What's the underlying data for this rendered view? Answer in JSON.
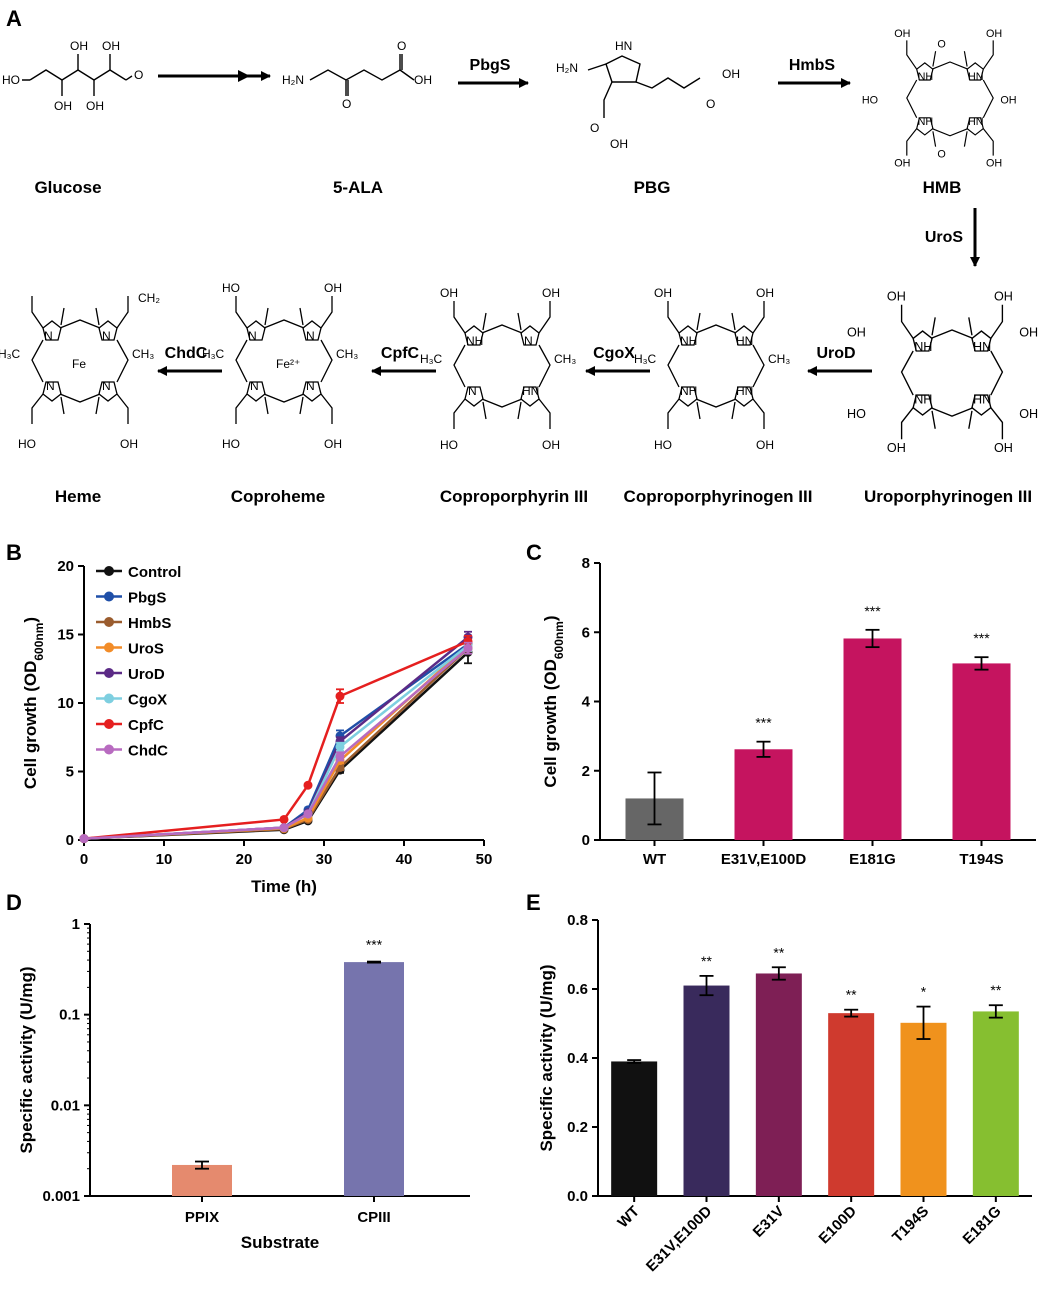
{
  "panels": {
    "A": "A",
    "B": "B",
    "C": "C",
    "D": "D",
    "E": "E"
  },
  "pathway": {
    "compounds": [
      "Glucose",
      "5-ALA",
      "PBG",
      "HMB",
      "Uroporphyrinogen III",
      "Coproporphyrinogen III",
      "Coproporphyrin III",
      "Coproheme",
      "Heme"
    ],
    "enzymes": [
      "PbgS",
      "HmbS",
      "UroS",
      "UroD",
      "CgoX",
      "CpfC",
      "ChdC"
    ],
    "atoms": {
      "oh": "OH",
      "ho": "HO",
      "o": "O",
      "h2n": "H₂N",
      "hn": "HN",
      "nh": "NH",
      "n": "N",
      "ch3": "CH₃",
      "h3c": "H₃C",
      "ch2": "CH₂",
      "fe": "Fe",
      "fe2": "Fe²⁺"
    }
  },
  "chart_data": [
    {
      "id": "B",
      "type": "line",
      "title": "",
      "xlabel": "Time (h)",
      "ylabel": "Cell growth (OD600nm)",
      "ylabel_main": "Cell growth (OD",
      "ylabel_sub": "600nm",
      "ylabel_end": ")",
      "xlim": [
        0,
        50
      ],
      "ylim": [
        0,
        20
      ],
      "xticks": [
        0,
        10,
        20,
        30,
        40,
        50
      ],
      "yticks": [
        0,
        5,
        10,
        15,
        20
      ],
      "x": [
        0,
        25,
        28,
        32,
        48
      ],
      "legend_position": "top-left",
      "series": [
        {
          "name": "Control",
          "color": "#111111",
          "values": [
            0.1,
            0.75,
            1.4,
            5.1,
            13.7
          ],
          "err": [
            0,
            0.05,
            0.1,
            0.2,
            0.8
          ]
        },
        {
          "name": "PbgS",
          "color": "#1f4fa8",
          "values": [
            0.1,
            0.9,
            2.2,
            7.6,
            14.3
          ],
          "err": [
            0,
            0.05,
            0.1,
            0.4,
            0.5
          ]
        },
        {
          "name": "HmbS",
          "color": "#9a5c2e",
          "values": [
            0.1,
            0.8,
            1.5,
            5.3,
            14.0
          ],
          "err": [
            0,
            0.05,
            0.1,
            0.2,
            0.4
          ]
        },
        {
          "name": "UroS",
          "color": "#f28c28",
          "values": [
            0.1,
            0.85,
            1.6,
            5.8,
            14.2
          ],
          "err": [
            0,
            0.05,
            0.1,
            0.2,
            0.4
          ]
        },
        {
          "name": "UroD",
          "color": "#5b2a86",
          "values": [
            0.1,
            0.9,
            2.0,
            7.2,
            14.8
          ],
          "err": [
            0,
            0.05,
            0.1,
            0.3,
            0.4
          ]
        },
        {
          "name": "CgoX",
          "color": "#7ecfe0",
          "values": [
            0.1,
            0.9,
            1.9,
            6.8,
            14.2
          ],
          "err": [
            0,
            0.05,
            0.1,
            0.3,
            0.4
          ]
        },
        {
          "name": "CpfC",
          "color": "#e51f1f",
          "values": [
            0.1,
            1.5,
            4.0,
            10.5,
            14.5
          ],
          "err": [
            0,
            0.05,
            0.1,
            0.5,
            0.4
          ]
        },
        {
          "name": "ChdC",
          "color": "#b86bc0",
          "values": [
            0.1,
            0.9,
            1.9,
            6.1,
            14.0
          ],
          "err": [
            0,
            0.05,
            0.1,
            0.3,
            0.4
          ]
        }
      ]
    },
    {
      "id": "C",
      "type": "bar",
      "title": "",
      "xlabel": "",
      "ylabel": "Cell growth (OD600nm)",
      "ylabel_main": "Cell growth (OD",
      "ylabel_sub": "600nm",
      "ylabel_end": ")",
      "ylim": [
        0,
        8
      ],
      "yticks": [
        0,
        2,
        4,
        6,
        8
      ],
      "categories": [
        "WT",
        "E31V,E100D",
        "E181G",
        "T194S"
      ],
      "values": [
        1.2,
        2.62,
        5.82,
        5.1
      ],
      "err": [
        0.75,
        0.22,
        0.25,
        0.18
      ],
      "colors": [
        "#666666",
        "#c5145f",
        "#c5145f",
        "#c5145f"
      ],
      "sig": [
        "",
        "***",
        "***",
        "***"
      ]
    },
    {
      "id": "D",
      "type": "bar",
      "title": "",
      "xlabel": "Substrate",
      "ylabel": "Specific activity (U/mg)",
      "yscale": "log",
      "ylim": [
        0.001,
        1
      ],
      "yticks": [
        0.001,
        0.01,
        0.1,
        1
      ],
      "ytick_labels": [
        "0.001",
        "0.01",
        "0.1",
        "1"
      ],
      "categories": [
        "PPIX",
        "CPIII"
      ],
      "values": [
        0.0022,
        0.38
      ],
      "err_low": [
        0.002,
        0.375
      ],
      "err_high": [
        0.0024,
        0.385
      ],
      "colors": [
        "#e58a6e",
        "#7674ad"
      ],
      "sig": [
        "",
        "***"
      ]
    },
    {
      "id": "E",
      "type": "bar",
      "title": "",
      "xlabel": "",
      "ylabel": "Specific activity (U/mg)",
      "ylim": [
        0,
        0.8
      ],
      "yticks": [
        0,
        0.2,
        0.4,
        0.6,
        0.8
      ],
      "ytick_labels": [
        "0.0",
        "0.2",
        "0.4",
        "0.6",
        "0.8"
      ],
      "categories": [
        "WT",
        "E31V,E100D",
        "E31V",
        "E100D",
        "T194S",
        "E181G"
      ],
      "values": [
        0.39,
        0.61,
        0.645,
        0.53,
        0.502,
        0.535
      ],
      "err": [
        0.004,
        0.028,
        0.018,
        0.01,
        0.047,
        0.018
      ],
      "colors": [
        "#111111",
        "#392a5c",
        "#7e1f55",
        "#cf3a2e",
        "#f0921d",
        "#86bf30"
      ],
      "sig": [
        "",
        "**",
        "**",
        "**",
        "*",
        "**"
      ]
    }
  ]
}
